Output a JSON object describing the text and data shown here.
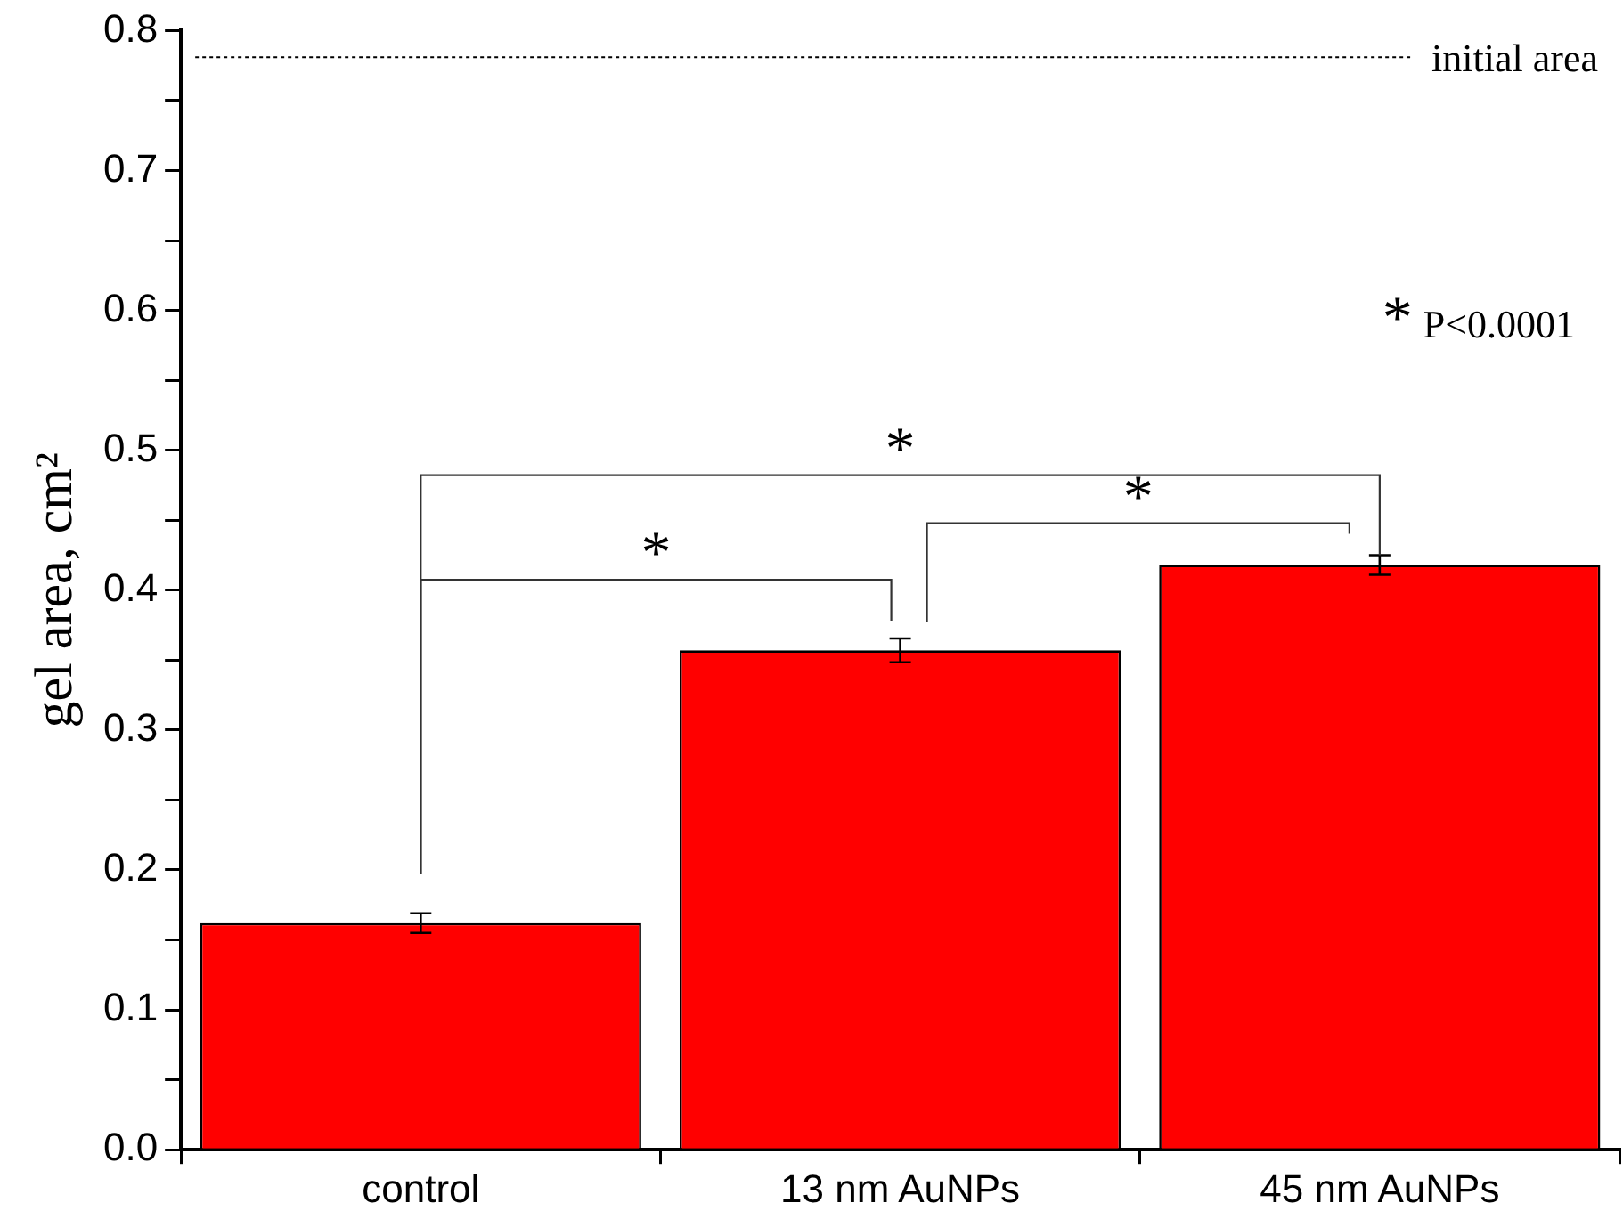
{
  "chart_data": {
    "type": "bar",
    "ylabel": "gel area, cm²",
    "categories": [
      "control",
      "13 nm AuNPs",
      "45 nm AuNPs"
    ],
    "values": [
      0.162,
      0.357,
      0.418
    ],
    "errors": [
      0.007,
      0.0085,
      0.007
    ],
    "color": "#ff0000",
    "ylim": [
      0,
      0.8
    ],
    "yticks": [
      {
        "value": 0,
        "label": "0.0"
      },
      {
        "value": 0.05,
        "label": null
      },
      0.1,
      {
        "value": 0.15,
        "label": null
      },
      0.2,
      {
        "value": 0.25,
        "label": null
      },
      0.3,
      {
        "value": 0.35,
        "label": null
      },
      0.4,
      {
        "value": 0.45,
        "label": null
      },
      0.5,
      {
        "value": 0.55,
        "label": null
      },
      0.6,
      {
        "value": 0.65,
        "label": null
      },
      0.7,
      {
        "value": 0.75,
        "label": null
      },
      0.8
    ],
    "ref_lines": [
      {
        "axis": "y",
        "value": 0.781,
        "label": "initial area",
        "line_style": "dotted"
      }
    ],
    "annotations": [
      "*",
      "*",
      "*",
      "* P<0.0001"
    ],
    "grid": false,
    "legend": false
  }
}
